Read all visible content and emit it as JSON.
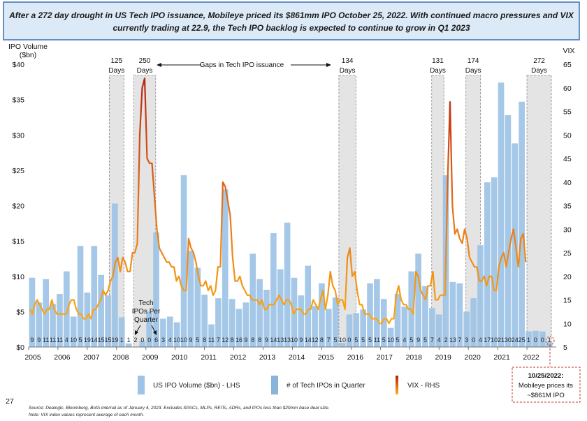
{
  "header": {
    "line1": "After a 272 day drought in US Tech IPO issuance, Mobileye priced its $861mm IPO October 25, 2022. With continued macro pressures and VIX",
    "line2": "currently trading at 22.9, the Tech IPO backlog is expected to continue to grow in Q1 2023"
  },
  "axes": {
    "left_title_1": "IPO Volume",
    "left_title_2": "($bn)",
    "right_title": "VIX",
    "left_ticks": [
      "$0",
      "$5",
      "$10",
      "$15",
      "$20",
      "$25",
      "$30",
      "$35",
      "$40"
    ],
    "right_ticks": [
      "5",
      "10",
      "15",
      "20",
      "25",
      "30",
      "35",
      "40",
      "45",
      "50",
      "55",
      "60",
      "65"
    ],
    "x_ticks": [
      "2005",
      "2006",
      "2007",
      "2008",
      "2009",
      "2010",
      "2011",
      "2012",
      "2013",
      "2014",
      "2015",
      "2016",
      "2017",
      "2018",
      "2019",
      "2020",
      "2021",
      "2022"
    ]
  },
  "gaps_label": "Gaps in Tech IPO issuance",
  "gaps": [
    {
      "line1": "125",
      "line2": "Days"
    },
    {
      "line1": "250",
      "line2": "Days"
    },
    {
      "line1": "134",
      "line2": "Days"
    },
    {
      "line1": "131",
      "line2": "Days"
    },
    {
      "line1": "174",
      "line2": "Days"
    },
    {
      "line1": "272",
      "line2": "Days"
    }
  ],
  "ipos_per_quarter_label": [
    "Tech",
    "IPOs Per",
    "Quarter"
  ],
  "legend": [
    {
      "label": "US IPO Volume ($bn) - LHS",
      "color": "#9dc3e6"
    },
    {
      "label": "# of Tech IPOs in Quarter",
      "color": "#8ab4d9"
    },
    {
      "label": "VIX - RHS",
      "color": "#e3721c"
    }
  ],
  "page_number": "27",
  "footnote_1": "Source: Dealogic, Bloomberg, BofA internal as of January 4, 2023. Excludes SPACs, MLPs, REITs, ADRs, and IPOs less than $20mm base deal size.",
  "footnote_2": "Note: VIX index values represent average of each month.",
  "annotation": {
    "line1": "10/25/2022:",
    "line2": "Mobileye prices its",
    "line3": "~$861M IPO"
  },
  "chart_data": {
    "type": "bar",
    "title": "",
    "xlabel": "",
    "ylabel": "IPO Volume ($bn)",
    "y2label": "VIX",
    "ylim": [
      0,
      40
    ],
    "y2lim": [
      5,
      65
    ],
    "x_range": [
      "2005-01",
      "2022-12"
    ],
    "series": [
      {
        "name": "US IPO Volume ($bn) - LHS",
        "axis": "left",
        "frequency": "quarterly",
        "values": [
          9.8,
          6.3,
          9.6,
          6.1,
          7.5,
          10.7,
          4.3,
          14.3,
          7.7,
          14.3,
          10.2,
          7.3,
          20.3,
          4.2,
          0.5,
          0.0,
          0.9,
          5.0,
          16.2,
          4.0,
          4.3,
          3.5,
          24.3,
          13.6,
          11.2,
          7.4,
          3.2,
          6.9,
          22.3,
          6.8,
          5.4,
          6.3,
          13.2,
          9.6,
          8.1,
          16.1,
          11.0,
          17.6,
          9.8,
          7.3,
          11.5,
          5.8,
          9.0,
          5.4,
          7.0,
          0.6,
          4.6,
          4.8,
          5.3,
          9.0,
          9.6,
          6.8,
          2.7,
          7.5,
          5.7,
          10.7,
          13.2,
          8.6,
          5.5,
          4.6,
          24.3,
          9.2,
          9.0,
          5.0,
          6.9,
          14.4,
          23.3,
          24.0,
          37.4,
          32.8,
          28.8,
          34.7,
          2.2,
          2.3,
          2.2,
          0.8
        ]
      },
      {
        "name": "# of Tech IPOs in Quarter",
        "frequency": "quarterly",
        "values": [
          9,
          9,
          11,
          11,
          11,
          4,
          10,
          5,
          19,
          14,
          15,
          15,
          19,
          1,
          1,
          2,
          0,
          0,
          6,
          3,
          4,
          10,
          10,
          9,
          5,
          8,
          11,
          7,
          12,
          8,
          16,
          9,
          8,
          8,
          9,
          14,
          13,
          13,
          10,
          9,
          14,
          12,
          8,
          7,
          5,
          10,
          0,
          5,
          5,
          5,
          11,
          5,
          10,
          5,
          4,
          5,
          9,
          5,
          7,
          4,
          2,
          13,
          7,
          3,
          0,
          4,
          17,
          10,
          21,
          30,
          24,
          25,
          1,
          0,
          0,
          1
        ]
      },
      {
        "name": "VIX - RHS",
        "axis": "right",
        "frequency": "monthly",
        "values": [
          13,
          12,
          14,
          15,
          14,
          13,
          12,
          13,
          13,
          15,
          13,
          12,
          12,
          12,
          12,
          12,
          14,
          15,
          15,
          13,
          12,
          12,
          11,
          11,
          12,
          11,
          13,
          13,
          14,
          15,
          17,
          16,
          17,
          19,
          20,
          23,
          24,
          21,
          24,
          23,
          21,
          21,
          25,
          25,
          27,
          50,
          60,
          62,
          45,
          44,
          44,
          37,
          30,
          26,
          25,
          24,
          23,
          23,
          22,
          22,
          19,
          20,
          18,
          17,
          17,
          28,
          26,
          25,
          23,
          20,
          18,
          18,
          19,
          17,
          18,
          16,
          17,
          22,
          22,
          40,
          39,
          36,
          33,
          24,
          19,
          19,
          20,
          18,
          17,
          16,
          16,
          15,
          15,
          15,
          14,
          15,
          13,
          13,
          14,
          14,
          14,
          15,
          16,
          15,
          14,
          15,
          15,
          14,
          12,
          13,
          13,
          13,
          12,
          12,
          13,
          13,
          15,
          14,
          13,
          15,
          17,
          13,
          16,
          21,
          18,
          17,
          14,
          15,
          15,
          13,
          24,
          26,
          20,
          21,
          17,
          14,
          14,
          12,
          12,
          12,
          11,
          11,
          11,
          10,
          10,
          11,
          11,
          10,
          11,
          11,
          16,
          18,
          15,
          14,
          14,
          13,
          13,
          12,
          21,
          20,
          17,
          16,
          15,
          18,
          18,
          21,
          15,
          15,
          16,
          16,
          16,
          40,
          57,
          35,
          29,
          30,
          28,
          27,
          30,
          28,
          24,
          23,
          22,
          22,
          19,
          19,
          20,
          18,
          20,
          20,
          17,
          17,
          22,
          24,
          25,
          22,
          25,
          28,
          30,
          26,
          22,
          28,
          29,
          23
        ]
      }
    ],
    "gaps": [
      {
        "label": "125 Days",
        "start": "2007-10",
        "end": "2008-03"
      },
      {
        "label": "250 Days",
        "start": "2008-08",
        "end": "2009-04"
      },
      {
        "label": "134 Days",
        "start": "2015-08",
        "end": "2016-02"
      },
      {
        "label": "131 Days",
        "start": "2018-10",
        "end": "2019-02"
      },
      {
        "label": "174 Days",
        "start": "2019-12",
        "end": "2020-05"
      },
      {
        "label": "272 Days",
        "start": "2022-01",
        "end": "2022-10"
      }
    ],
    "grid": false,
    "legend_position": "bottom"
  }
}
